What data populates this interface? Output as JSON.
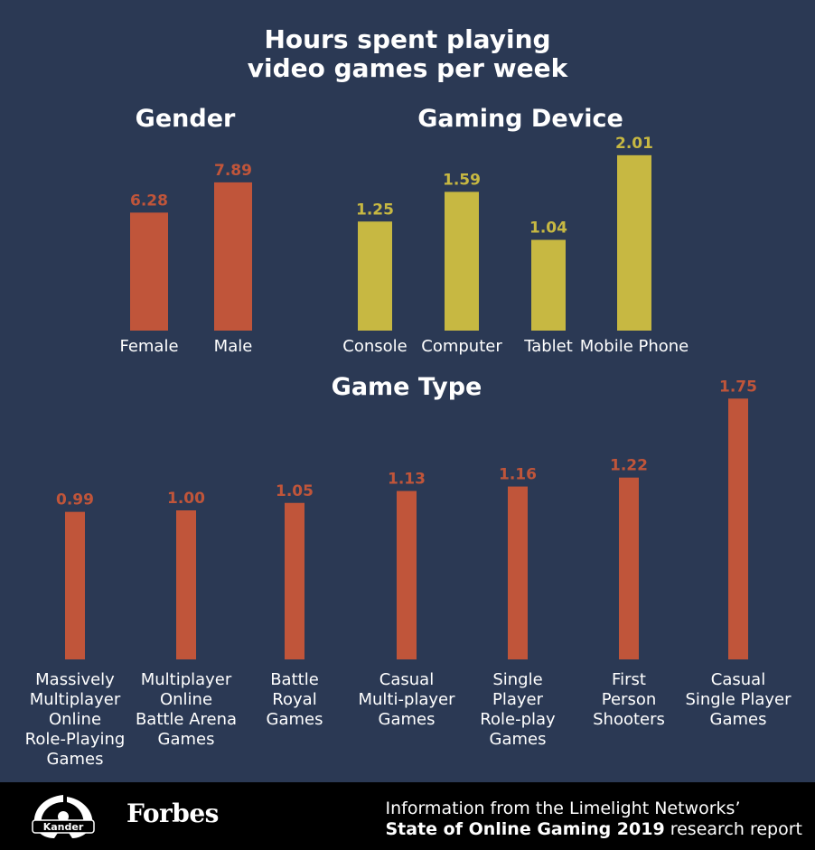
{
  "title_lines": [
    "Hours spent playing",
    "video games per week"
  ],
  "colors": {
    "background": "#2b3954",
    "orange": "#c0553a",
    "yellow": "#c7b842",
    "footer": "#000000",
    "text": "#ffffff"
  },
  "footer": {
    "logo1_text": "Kander",
    "logo2_text": "Forbes",
    "source_line1": "Information from the Limelight Networks’",
    "source_bold": "State of Online Gaming 2019",
    "source_rest": " research report"
  },
  "chart_data": [
    {
      "type": "bar",
      "title": "Gender",
      "categories": [
        "Female",
        "Male"
      ],
      "values": [
        6.28,
        7.89
      ],
      "value_labels": [
        "6.28",
        "7.89"
      ],
      "color": "#c0553a"
    },
    {
      "type": "bar",
      "title": "Gaming Device",
      "categories": [
        "Console",
        "Computer",
        "Tablet",
        "Mobile Phone"
      ],
      "values": [
        1.25,
        1.59,
        1.04,
        2.01
      ],
      "value_labels": [
        "1.25",
        "1.59",
        "1.04",
        "2.01"
      ],
      "color": "#c7b842"
    },
    {
      "type": "bar",
      "title": "Game Type",
      "categories": [
        [
          "Massively",
          "Multiplayer",
          "Online",
          "Role-Playing",
          "Games"
        ],
        [
          "Multiplayer",
          "Online",
          "Battle Arena",
          "Games"
        ],
        [
          "Battle",
          "Royal",
          "Games"
        ],
        [
          "Casual",
          "Multi-player",
          "Games"
        ],
        [
          "Single",
          "Player",
          "Role-play",
          "Games"
        ],
        [
          "First",
          "Person",
          "Shooters"
        ],
        [
          "Casual",
          "Single Player",
          "Games"
        ]
      ],
      "values": [
        0.99,
        1.0,
        1.05,
        1.13,
        1.16,
        1.22,
        1.75
      ],
      "value_labels": [
        "0.99",
        "1.00",
        "1.05",
        "1.13",
        "1.16",
        "1.22",
        "1.75"
      ],
      "color": "#c0553a"
    }
  ]
}
